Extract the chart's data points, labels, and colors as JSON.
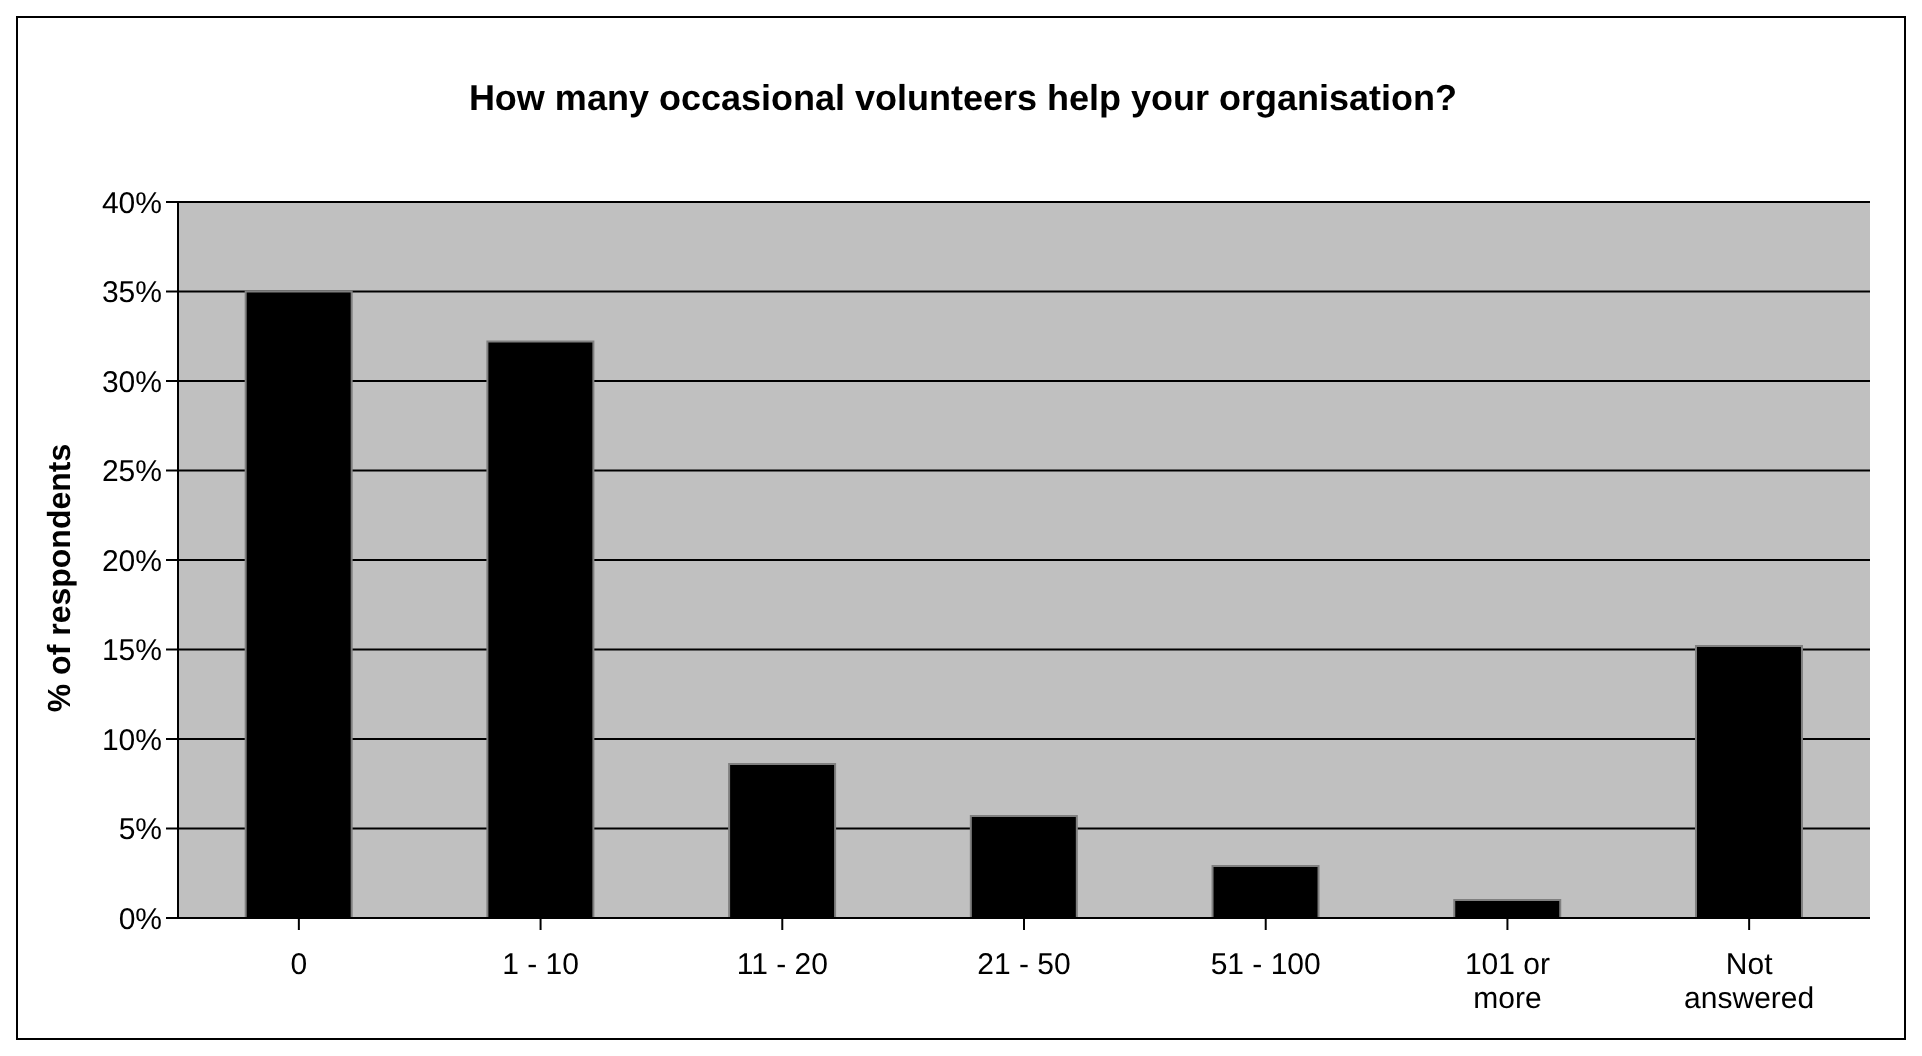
{
  "chart_data": {
    "type": "bar",
    "title": "How many occasional volunteers help your organisation?",
    "ylabel": "% of respondents",
    "categories": [
      "0",
      "1 - 10",
      "11 - 20",
      "21 - 50",
      "51 - 100",
      "101 or more",
      "Not answered"
    ],
    "values": [
      35,
      32.2,
      8.6,
      5.7,
      2.9,
      1.0,
      15.2
    ],
    "color": "#000000",
    "ylim": [
      0,
      40
    ],
    "yticks": [
      {
        "value": 0,
        "label": "0%"
      },
      {
        "value": 5,
        "label": "5%"
      },
      {
        "value": 10,
        "label": "10%"
      },
      {
        "value": 15,
        "label": "15%"
      },
      {
        "value": 20,
        "label": "20%"
      },
      {
        "value": 25,
        "label": "25%"
      },
      {
        "value": 30,
        "label": "30%"
      },
      {
        "value": 35,
        "label": "35%"
      },
      {
        "value": 40,
        "label": "40%"
      }
    ],
    "grid": "y",
    "legend": false
  }
}
